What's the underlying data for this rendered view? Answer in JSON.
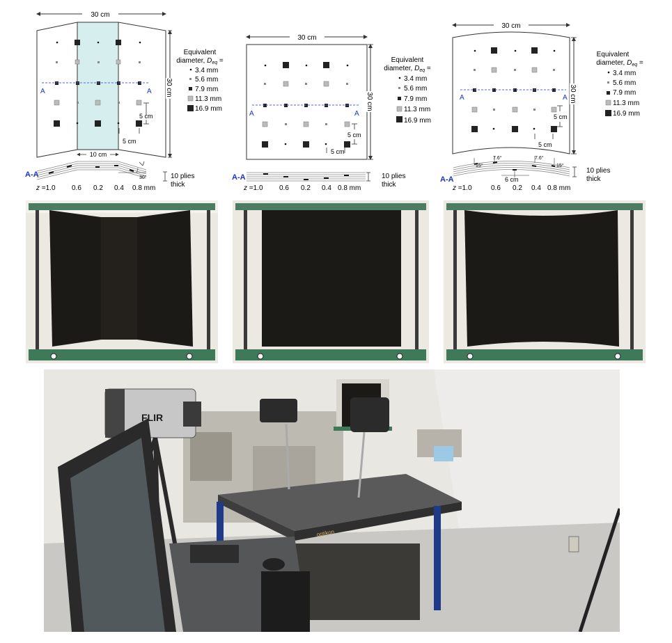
{
  "colors": {
    "panel_fill": "#d7eeee",
    "section_blue": "#1a33cc",
    "dashed_line": "#4d66ee",
    "specimen_black": "#1c1a17",
    "frame_green": "#3e7a5a",
    "wall": "#e9e7e2"
  },
  "legend": {
    "title_line1": "Equivalent",
    "title_line2": "diameter, ",
    "symbol_base": "D",
    "symbol_sub": "eq",
    "symbol_tail": " =",
    "entries": [
      "3.4 mm",
      "5.6 mm",
      "7.9 mm",
      "11.3 mm",
      "16.9 mm"
    ]
  },
  "dims": {
    "width": "30 cm",
    "height": "30 cm",
    "pitch": "5 cm",
    "flat_panel": "10 cm",
    "chord": "6 cm",
    "angle_bend": "30°",
    "angle_a": "15°",
    "angle_b": "7.6°"
  },
  "section": {
    "label": "A-A",
    "marker": "A",
    "plies_line1": "10 plies",
    "plies_line2": "thick",
    "depth_prefix": "z",
    "depths": [
      "=1.0",
      "0.6",
      "0.2",
      "0.4",
      "0.8 mm"
    ]
  },
  "photos": {
    "camera_brand": "FLIR",
    "table_brand": "optikon"
  }
}
